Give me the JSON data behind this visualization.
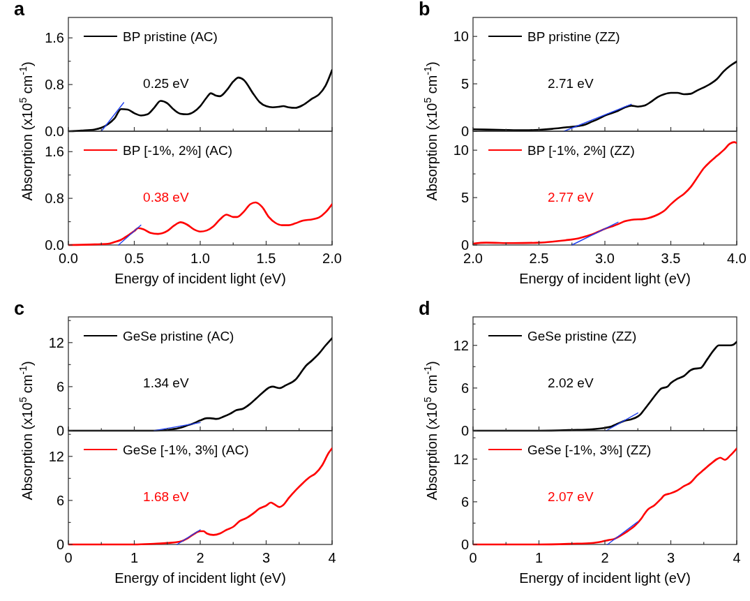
{
  "chart_data": [
    {
      "type": "line",
      "title": "a",
      "ylabel": "Absorption (x10$^{5}$ cm$^{-1}$)",
      "xlim": [
        0,
        2
      ],
      "ylim": [
        0,
        1.95
      ],
      "tick_labels": "y",
      "legend": "top left",
      "xticks": [
        0,
        {
          "value": 0.25,
          "label": null
        },
        0.5,
        {
          "value": 0.75,
          "label": null
        },
        1,
        {
          "value": 1.25,
          "label": null
        },
        1.5,
        {
          "value": 1.75,
          "label": null
        },
        2
      ],
      "yticks": [
        {
          "value": 0,
          "label": "0.0"
        },
        {
          "value": 0.4,
          "label": null
        },
        0.8,
        {
          "value": 1.2,
          "label": null
        },
        1.6
      ],
      "annotations": [
        "0.25 eV"
      ],
      "series": [
        {
          "name": "BP pristine (AC)",
          "color": "#000000",
          "x": [
            0,
            0.1,
            0.2,
            0.25,
            0.3,
            0.35,
            0.4,
            0.45,
            0.5,
            0.55,
            0.6,
            0.65,
            0.7,
            0.75,
            0.8,
            0.85,
            0.9,
            0.95,
            1.0,
            1.05,
            1.08,
            1.12,
            1.15,
            1.2,
            1.25,
            1.29,
            1.33,
            1.4,
            1.45,
            1.5,
            1.55,
            1.6,
            1.63,
            1.67,
            1.72,
            1.78,
            1.85,
            1.9,
            1.95,
            2.0
          ],
          "values": [
            0,
            0.01,
            0.03,
            0.06,
            0.12,
            0.22,
            0.38,
            0.37,
            0.31,
            0.27,
            0.29,
            0.4,
            0.52,
            0.48,
            0.37,
            0.3,
            0.29,
            0.33,
            0.43,
            0.58,
            0.65,
            0.61,
            0.6,
            0.7,
            0.85,
            0.92,
            0.88,
            0.65,
            0.5,
            0.43,
            0.41,
            0.42,
            0.43,
            0.41,
            0.4,
            0.45,
            0.56,
            0.63,
            0.78,
            1.05
          ]
        },
        {
          "color": "#2040f0",
          "x": [
            0.25,
            0.42
          ],
          "values": [
            0,
            0.49
          ]
        }
      ]
    },
    {
      "type": "line",
      "xlabel": "Energy of incident light (eV)",
      "xlim": [
        0,
        2
      ],
      "ylim": [
        0,
        1.95
      ],
      "legend": "top left",
      "xticks": [
        {
          "value": 0,
          "label": "0.0"
        },
        {
          "value": 0.25,
          "label": null
        },
        0.5,
        {
          "value": 0.75,
          "label": null
        },
        {
          "value": 1,
          "label": "1.0"
        },
        {
          "value": 1.25,
          "label": null
        },
        1.5,
        {
          "value": 1.75,
          "label": null
        },
        {
          "value": 2,
          "label": "2.0"
        }
      ],
      "yticks": [
        {
          "value": 0,
          "label": "0.0"
        },
        {
          "value": 0.4,
          "label": null
        },
        0.8,
        {
          "value": 1.2,
          "label": null
        },
        1.6
      ],
      "annotations": [
        "0.38 eV"
      ],
      "series": [
        {
          "name": "BP [-1%, 2%] (AC)",
          "color": "#ff0000",
          "x": [
            0,
            0.2,
            0.3,
            0.35,
            0.4,
            0.45,
            0.5,
            0.53,
            0.57,
            0.62,
            0.68,
            0.75,
            0.8,
            0.85,
            0.9,
            0.95,
            1.0,
            1.05,
            1.1,
            1.15,
            1.2,
            1.25,
            1.28,
            1.33,
            1.38,
            1.42,
            1.47,
            1.52,
            1.57,
            1.62,
            1.67,
            1.72,
            1.78,
            1.85,
            1.9,
            1.95,
            2.0
          ],
          "values": [
            0,
            0.01,
            0.02,
            0.05,
            0.09,
            0.16,
            0.24,
            0.29,
            0.27,
            0.21,
            0.19,
            0.24,
            0.33,
            0.39,
            0.35,
            0.27,
            0.23,
            0.25,
            0.32,
            0.44,
            0.52,
            0.48,
            0.48,
            0.57,
            0.7,
            0.73,
            0.65,
            0.48,
            0.38,
            0.34,
            0.34,
            0.37,
            0.42,
            0.44,
            0.47,
            0.56,
            0.7
          ]
        },
        {
          "color": "#2040f0",
          "x": [
            0.38,
            0.55
          ],
          "values": [
            0,
            0.34
          ]
        }
      ]
    },
    {
      "type": "line",
      "title": "b",
      "ylabel": "Absorption (x10$^{5}$ cm$^{-1}$)",
      "xlim": [
        2,
        4
      ],
      "ylim": [
        0,
        12
      ],
      "tick_labels": "y",
      "legend": "top left",
      "xticks": [
        2,
        {
          "value": 2.25,
          "label": null
        },
        2.5,
        {
          "value": 2.75,
          "label": null
        },
        3,
        {
          "value": 3.25,
          "label": null
        },
        3.5,
        {
          "value": 3.75,
          "label": null
        },
        4
      ],
      "yticks": [
        0,
        {
          "value": 2.5,
          "label": null
        },
        5,
        {
          "value": 7.5,
          "label": null
        },
        10
      ],
      "annotations": [
        "2.71 eV"
      ],
      "series": [
        {
          "name": "BP pristine (ZZ)",
          "color": "#000000",
          "x": [
            2.0,
            2.2,
            2.4,
            2.5,
            2.6,
            2.7,
            2.8,
            2.85,
            2.9,
            2.95,
            3.0,
            3.1,
            3.15,
            3.2,
            3.25,
            3.3,
            3.35,
            3.4,
            3.45,
            3.5,
            3.55,
            3.6,
            3.65,
            3.7,
            3.8,
            3.85,
            3.9,
            3.95,
            4.0
          ],
          "values": [
            0.2,
            0.15,
            0.1,
            0.15,
            0.25,
            0.4,
            0.55,
            0.7,
            1.0,
            1.3,
            1.65,
            2.15,
            2.5,
            2.7,
            2.6,
            2.7,
            3.1,
            3.6,
            3.9,
            4.05,
            4.05,
            3.9,
            3.95,
            4.3,
            5.0,
            5.5,
            6.3,
            6.9,
            7.35
          ]
        },
        {
          "color": "#2040f0",
          "x": [
            2.69,
            3.2
          ],
          "values": [
            0,
            2.85
          ]
        }
      ]
    },
    {
      "type": "line",
      "xlabel": "Energy of incident light (eV)",
      "xlim": [
        2,
        4
      ],
      "ylim": [
        0,
        12
      ],
      "legend": "top left",
      "xticks": [
        {
          "value": 2,
          "label": "2.0"
        },
        {
          "value": 2.25,
          "label": null
        },
        2.5,
        {
          "value": 2.75,
          "label": null
        },
        {
          "value": 3,
          "label": "3.0"
        },
        {
          "value": 3.25,
          "label": null
        },
        3.5,
        {
          "value": 3.75,
          "label": null
        },
        {
          "value": 4,
          "label": "4.0"
        }
      ],
      "yticks": [
        0,
        {
          "value": 2.5,
          "label": null
        },
        5,
        {
          "value": 7.5,
          "label": null
        },
        10
      ],
      "annotations": [
        "2.77 eV"
      ],
      "series": [
        {
          "name": "BP [-1%, 2%] (ZZ)",
          "color": "#ff0000",
          "x": [
            2.0,
            2.1,
            2.3,
            2.5,
            2.6,
            2.7,
            2.8,
            2.85,
            2.9,
            2.95,
            3.0,
            3.05,
            3.1,
            3.15,
            3.2,
            3.3,
            3.4,
            3.45,
            3.5,
            3.55,
            3.6,
            3.65,
            3.7,
            3.75,
            3.8,
            3.85,
            3.9,
            3.95,
            3.98,
            4.0
          ],
          "values": [
            0.15,
            0.25,
            0.2,
            0.25,
            0.35,
            0.5,
            0.7,
            0.9,
            1.1,
            1.4,
            1.7,
            1.95,
            2.2,
            2.5,
            2.65,
            2.75,
            3.2,
            3.6,
            4.3,
            4.9,
            5.4,
            6.1,
            7.1,
            8.1,
            8.8,
            9.4,
            10.0,
            10.7,
            10.85,
            10.75
          ]
        },
        {
          "color": "#2040f0",
          "x": [
            2.75,
            3.1
          ],
          "values": [
            0,
            2.41
          ]
        }
      ]
    },
    {
      "type": "line",
      "title": "c",
      "ylabel": "Absorption (x10$^{5}$ cm$^{-1}$)",
      "xlim": [
        0,
        4
      ],
      "ylim": [
        0,
        15.5
      ],
      "tick_labels": "y",
      "legend": "top left",
      "xticks": [
        0,
        {
          "value": 0.5,
          "label": null
        },
        1,
        {
          "value": 1.5,
          "label": null
        },
        2,
        {
          "value": 2.5,
          "label": null
        },
        3,
        {
          "value": 3.5,
          "label": null
        },
        4
      ],
      "yticks": [
        0,
        {
          "value": 3,
          "label": null
        },
        6,
        {
          "value": 9,
          "label": null
        },
        12,
        {
          "value": 15,
          "label": null
        }
      ],
      "annotations": [
        "1.34 eV"
      ],
      "series": [
        {
          "name": "GeSe pristine (AC)",
          "color": "#000000",
          "x": [
            0,
            1.0,
            1.3,
            1.5,
            1.7,
            1.8,
            1.9,
            2.0,
            2.1,
            2.15,
            2.25,
            2.35,
            2.45,
            2.55,
            2.65,
            2.75,
            2.85,
            2.95,
            3.05,
            3.1,
            3.2,
            3.3,
            3.45,
            3.55,
            3.6,
            3.7,
            3.8,
            3.9,
            4.0
          ],
          "values": [
            0,
            0,
            0,
            0.1,
            0.4,
            0.7,
            1.0,
            1.4,
            1.7,
            1.7,
            1.6,
            1.9,
            2.3,
            2.8,
            3.0,
            3.6,
            4.4,
            5.2,
            5.9,
            6.0,
            5.8,
            6.2,
            7.0,
            8.2,
            8.8,
            9.6,
            10.5,
            11.6,
            12.6
          ]
        },
        {
          "color": "#2040f0",
          "x": [
            1.3,
            2.0
          ],
          "values": [
            0,
            1.1
          ]
        }
      ]
    },
    {
      "type": "line",
      "xlabel": "Energy of incident light (eV)",
      "xlim": [
        0,
        4
      ],
      "ylim": [
        0,
        15.5
      ],
      "legend": "top left",
      "xticks": [
        0,
        {
          "value": 0.5,
          "label": null
        },
        1,
        {
          "value": 1.5,
          "label": null
        },
        2,
        {
          "value": 2.5,
          "label": null
        },
        3,
        {
          "value": 3.5,
          "label": null
        },
        4
      ],
      "yticks": [
        0,
        {
          "value": 3,
          "label": null
        },
        6,
        {
          "value": 9,
          "label": null
        },
        12,
        {
          "value": 15,
          "label": null
        }
      ],
      "annotations": [
        "1.68 eV"
      ],
      "series": [
        {
          "name": "GeSe [-1%, 3%] (AC)",
          "color": "#ff0000",
          "x": [
            0,
            1.0,
            1.3,
            1.5,
            1.7,
            1.8,
            1.9,
            2.0,
            2.05,
            2.1,
            2.2,
            2.3,
            2.4,
            2.5,
            2.6,
            2.7,
            2.8,
            2.9,
            3.0,
            3.07,
            3.12,
            3.2,
            3.25,
            3.35,
            3.45,
            3.55,
            3.65,
            3.75,
            3.85,
            3.95,
            4.0
          ],
          "values": [
            0,
            0,
            0.1,
            0.2,
            0.4,
            0.8,
            1.4,
            1.8,
            1.8,
            1.5,
            1.3,
            1.5,
            2.0,
            2.4,
            3.2,
            3.6,
            4.2,
            4.9,
            5.3,
            5.7,
            5.5,
            5.1,
            5.3,
            6.4,
            7.4,
            8.3,
            9.1,
            9.7,
            10.8,
            12.5,
            13.1
          ]
        },
        {
          "color": "#2040f0",
          "x": [
            1.65,
            2.0
          ],
          "values": [
            0,
            2.0
          ]
        }
      ]
    },
    {
      "type": "line",
      "title": "d",
      "ylabel": "Absorption (x10$^{5}$ cm$^{-1}$)",
      "xlim": [
        0,
        4
      ],
      "ylim": [
        0,
        16
      ],
      "tick_labels": "y",
      "legend": "top left",
      "xticks": [
        0,
        {
          "value": 0.5,
          "label": null
        },
        1,
        {
          "value": 1.5,
          "label": null
        },
        2,
        {
          "value": 2.5,
          "label": null
        },
        3,
        {
          "value": 3.5,
          "label": null
        },
        4
      ],
      "yticks": [
        0,
        {
          "value": 3,
          "label": null
        },
        6,
        {
          "value": 9,
          "label": null
        },
        12,
        {
          "value": 15,
          "label": null
        }
      ],
      "annotations": [
        "2.02 eV"
      ],
      "series": [
        {
          "name": "GeSe pristine (ZZ)",
          "color": "#000000",
          "x": [
            0,
            1.0,
            1.5,
            1.8,
            2.0,
            2.1,
            2.2,
            2.3,
            2.4,
            2.5,
            2.55,
            2.6,
            2.7,
            2.8,
            2.85,
            2.95,
            3.0,
            3.1,
            3.2,
            3.3,
            3.35,
            3.45,
            3.55,
            3.65,
            3.73,
            3.8,
            3.9,
            3.95,
            4.0
          ],
          "values": [
            0,
            0,
            0.1,
            0.2,
            0.4,
            0.6,
            1.0,
            1.4,
            1.6,
            2.0,
            2.4,
            3.0,
            4.2,
            5.4,
            5.9,
            6.2,
            6.7,
            7.3,
            7.7,
            8.5,
            8.7,
            8.8,
            10.0,
            11.3,
            12.0,
            12.0,
            12.0,
            12.1,
            12.5
          ]
        },
        {
          "color": "#2040f0",
          "x": [
            2.02,
            2.5
          ],
          "values": [
            0,
            2.5
          ]
        }
      ]
    },
    {
      "type": "line",
      "xlabel": "Energy of incident light (eV)",
      "xlim": [
        0,
        4
      ],
      "ylim": [
        0,
        16
      ],
      "legend": "top left",
      "xticks": [
        0,
        {
          "value": 0.5,
          "label": null
        },
        1,
        {
          "value": 1.5,
          "label": null
        },
        2,
        {
          "value": 2.5,
          "label": null
        },
        3,
        {
          "value": 3.5,
          "label": null
        },
        4
      ],
      "yticks": [
        0,
        {
          "value": 3,
          "label": null
        },
        6,
        {
          "value": 9,
          "label": null
        },
        12,
        {
          "value": 15,
          "label": null
        }
      ],
      "annotations": [
        "2.07 eV"
      ],
      "series": [
        {
          "name": "GeSe [-1%, 3%] (ZZ)",
          "color": "#ff0000",
          "x": [
            0,
            1.0,
            1.5,
            1.8,
            1.95,
            2.05,
            2.15,
            2.25,
            2.35,
            2.45,
            2.55,
            2.6,
            2.65,
            2.75,
            2.85,
            2.9,
            3.0,
            3.1,
            3.2,
            3.3,
            3.4,
            3.5,
            3.6,
            3.7,
            3.75,
            3.82,
            3.9,
            4.0
          ],
          "values": [
            0,
            0,
            0.1,
            0.2,
            0.4,
            0.6,
            0.8,
            1.3,
            1.9,
            2.6,
            3.6,
            4.3,
            4.9,
            5.5,
            6.4,
            6.9,
            7.2,
            7.6,
            8.2,
            8.7,
            9.7,
            10.5,
            11.3,
            12.0,
            12.2,
            11.9,
            12.5,
            13.5
          ]
        },
        {
          "color": "#2040f0",
          "x": [
            2.04,
            2.5
          ],
          "values": [
            0,
            3.2
          ]
        }
      ]
    }
  ]
}
